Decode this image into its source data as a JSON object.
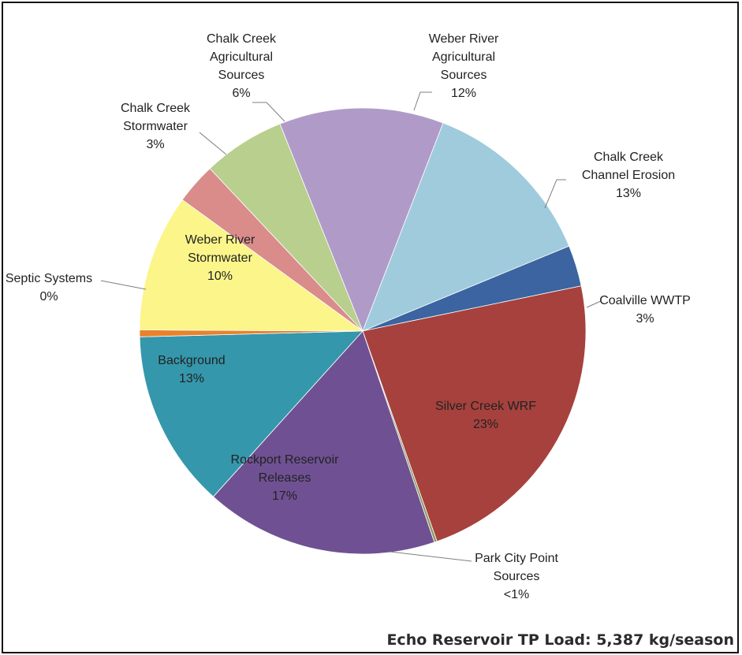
{
  "chart_data": {
    "type": "pie",
    "title": "",
    "slices": [
      {
        "label_lines": [
          "Coalville WWTP",
          "3%"
        ],
        "value": 3,
        "color": "#3b64a0"
      },
      {
        "label_lines": [
          "Silver Creek WRF",
          "23%"
        ],
        "value": 23,
        "color": "#a6413d"
      },
      {
        "label_lines": [
          "Park City Point",
          "Sources",
          "<1%"
        ],
        "value": 0.2,
        "color": "#8e9a5e"
      },
      {
        "label_lines": [
          "Rockport Reservoir",
          "Releases",
          "17%"
        ],
        "value": 17,
        "color": "#6f5193"
      },
      {
        "label_lines": [
          "Background",
          "13%"
        ],
        "value": 13,
        "color": "#3597ab"
      },
      {
        "label_lines": [
          "Septic Systems",
          "0%"
        ],
        "value": 0.5,
        "color": "#e9822b"
      },
      {
        "label_lines": [
          "Weber River",
          "Stormwater",
          "10%"
        ],
        "value": 10,
        "color": "#fbf58a"
      },
      {
        "label_lines": [
          "Chalk Creek",
          "Stormwater",
          "3%"
        ],
        "value": 3,
        "color": "#d98c8a"
      },
      {
        "label_lines": [
          "Chalk Creek",
          "Agricultural",
          "Sources",
          "6%"
        ],
        "value": 6,
        "color": "#b8cf8e"
      },
      {
        "label_lines": [
          "Weber River",
          "Agricultural",
          "Sources",
          "12%"
        ],
        "value": 12,
        "color": "#b09bc8"
      },
      {
        "label_lines": [
          "Chalk Creek",
          "Channel Erosion",
          "13%"
        ],
        "value": 13,
        "color": "#9fcbdd"
      }
    ]
  },
  "footer": {
    "total_label": "Echo Reservoir TP Load: 5,387 kg/season"
  }
}
